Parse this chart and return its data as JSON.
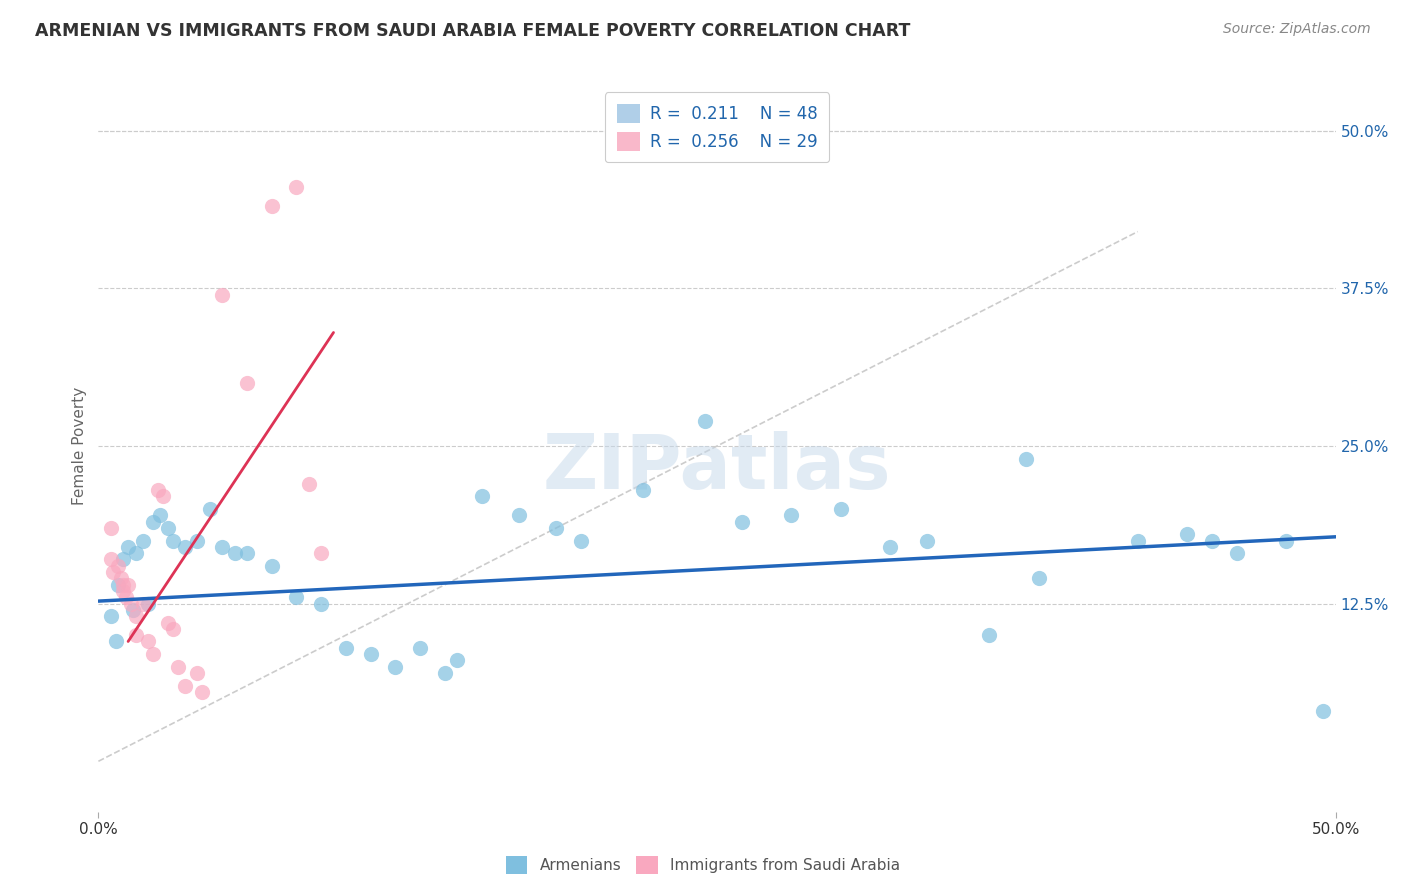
{
  "title": "ARMENIAN VS IMMIGRANTS FROM SAUDI ARABIA FEMALE POVERTY CORRELATION CHART",
  "source": "Source: ZipAtlas.com",
  "ylabel": "Female Poverty",
  "right_yticks": [
    "50.0%",
    "37.5%",
    "25.0%",
    "12.5%"
  ],
  "right_ytick_vals": [
    0.5,
    0.375,
    0.25,
    0.125
  ],
  "xlim": [
    0.0,
    0.5
  ],
  "ylim": [
    -0.04,
    0.54
  ],
  "armenian_color": "#7fbfdf",
  "saudi_color": "#f9a8bf",
  "armenian_scatter": [
    [
      0.005,
      0.115
    ],
    [
      0.007,
      0.095
    ],
    [
      0.008,
      0.14
    ],
    [
      0.01,
      0.16
    ],
    [
      0.012,
      0.17
    ],
    [
      0.014,
      0.12
    ],
    [
      0.015,
      0.165
    ],
    [
      0.018,
      0.175
    ],
    [
      0.02,
      0.125
    ],
    [
      0.022,
      0.19
    ],
    [
      0.025,
      0.195
    ],
    [
      0.028,
      0.185
    ],
    [
      0.03,
      0.175
    ],
    [
      0.035,
      0.17
    ],
    [
      0.04,
      0.175
    ],
    [
      0.045,
      0.2
    ],
    [
      0.05,
      0.17
    ],
    [
      0.055,
      0.165
    ],
    [
      0.06,
      0.165
    ],
    [
      0.07,
      0.155
    ],
    [
      0.08,
      0.13
    ],
    [
      0.09,
      0.125
    ],
    [
      0.1,
      0.09
    ],
    [
      0.11,
      0.085
    ],
    [
      0.12,
      0.075
    ],
    [
      0.13,
      0.09
    ],
    [
      0.14,
      0.07
    ],
    [
      0.145,
      0.08
    ],
    [
      0.155,
      0.21
    ],
    [
      0.17,
      0.195
    ],
    [
      0.185,
      0.185
    ],
    [
      0.195,
      0.175
    ],
    [
      0.22,
      0.215
    ],
    [
      0.245,
      0.27
    ],
    [
      0.26,
      0.19
    ],
    [
      0.28,
      0.195
    ],
    [
      0.3,
      0.2
    ],
    [
      0.32,
      0.17
    ],
    [
      0.335,
      0.175
    ],
    [
      0.36,
      0.1
    ],
    [
      0.38,
      0.145
    ],
    [
      0.42,
      0.175
    ],
    [
      0.44,
      0.18
    ],
    [
      0.45,
      0.175
    ],
    [
      0.46,
      0.165
    ],
    [
      0.48,
      0.175
    ],
    [
      0.495,
      0.04
    ],
    [
      0.375,
      0.24
    ]
  ],
  "saudi_scatter": [
    [
      0.005,
      0.185
    ],
    [
      0.005,
      0.16
    ],
    [
      0.006,
      0.15
    ],
    [
      0.008,
      0.155
    ],
    [
      0.009,
      0.145
    ],
    [
      0.01,
      0.14
    ],
    [
      0.01,
      0.135
    ],
    [
      0.011,
      0.13
    ],
    [
      0.012,
      0.14
    ],
    [
      0.013,
      0.125
    ],
    [
      0.015,
      0.115
    ],
    [
      0.015,
      0.1
    ],
    [
      0.018,
      0.125
    ],
    [
      0.02,
      0.095
    ],
    [
      0.022,
      0.085
    ],
    [
      0.024,
      0.215
    ],
    [
      0.026,
      0.21
    ],
    [
      0.028,
      0.11
    ],
    [
      0.03,
      0.105
    ],
    [
      0.032,
      0.075
    ],
    [
      0.035,
      0.06
    ],
    [
      0.04,
      0.07
    ],
    [
      0.042,
      0.055
    ],
    [
      0.05,
      0.37
    ],
    [
      0.06,
      0.3
    ],
    [
      0.07,
      0.44
    ],
    [
      0.08,
      0.455
    ],
    [
      0.085,
      0.22
    ],
    [
      0.09,
      0.165
    ]
  ],
  "blue_line_x": [
    0.0,
    0.5
  ],
  "blue_line_y": [
    0.127,
    0.178
  ],
  "pink_line_x": [
    0.012,
    0.095
  ],
  "pink_line_y": [
    0.095,
    0.34
  ],
  "diag_line_x": [
    0.0,
    0.42
  ],
  "diag_line_y": [
    0.0,
    0.42
  ],
  "watermark": "ZIPatlas",
  "background_color": "#ffffff",
  "grid_color": "#cccccc"
}
